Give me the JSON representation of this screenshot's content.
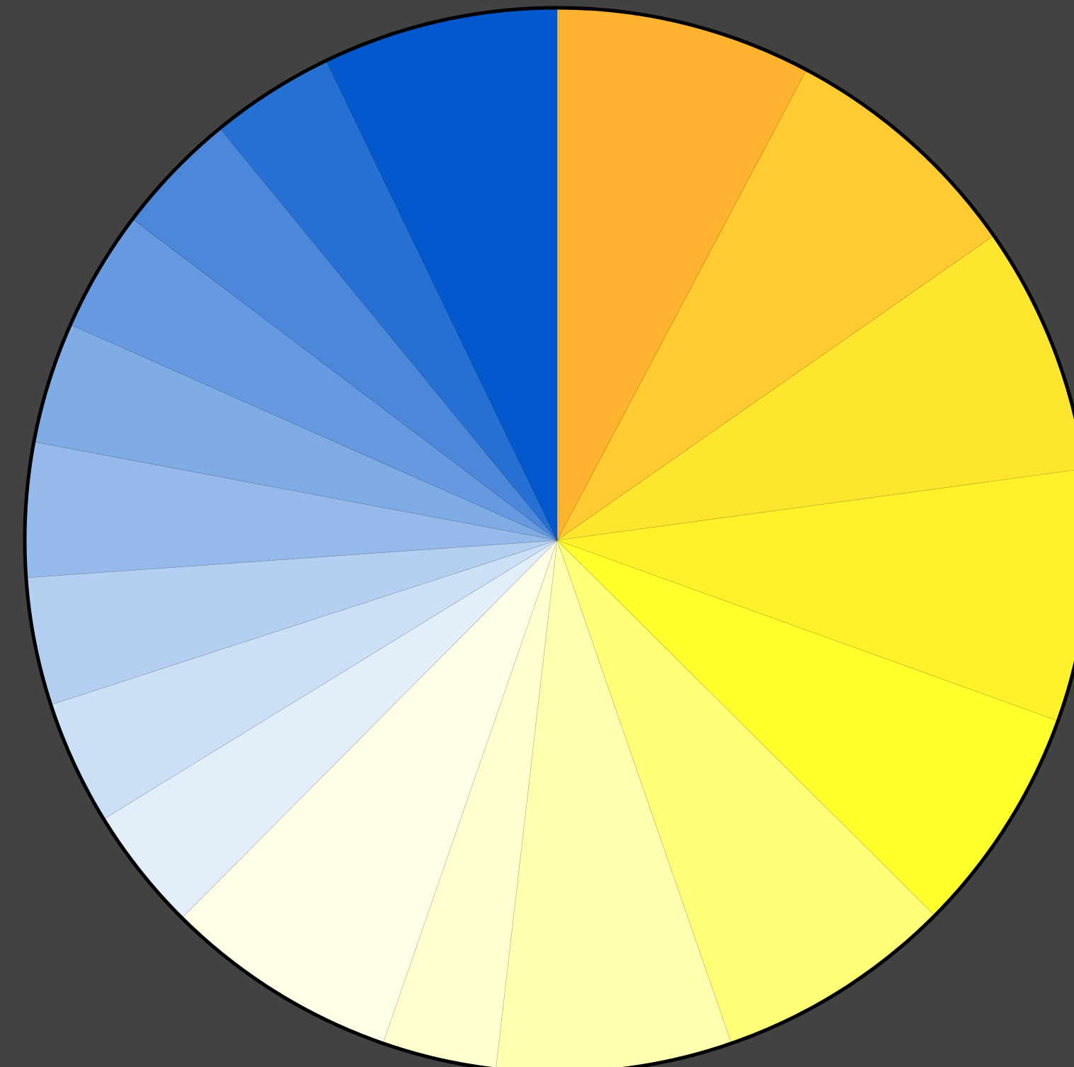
{
  "background_color": "#424242",
  "outline_color": "#000000",
  "chart_data": {
    "type": "pie",
    "start": "12 o'clock",
    "direction": "clockwise",
    "legend": "none",
    "labels": "none",
    "slices": [
      {
        "value": 7.6,
        "color": "#FFB32E"
      },
      {
        "value": 7.4,
        "color": "#FFCB30"
      },
      {
        "value": 7.4,
        "color": "#FFE62E"
      },
      {
        "value": 7.5,
        "color": "#FFF22B"
      },
      {
        "value": 6.8,
        "color": "#FFFF2C"
      },
      {
        "value": 7.1,
        "color": "#FFFF78"
      },
      {
        "value": 7.0,
        "color": "#FFFFB0"
      },
      {
        "value": 3.4,
        "color": "#FFFFD0"
      },
      {
        "value": 7.0,
        "color": "#FFFFE8"
      },
      {
        "value": 3.7,
        "color": "#E2EEFA"
      },
      {
        "value": 3.7,
        "color": "#CBDFF6"
      },
      {
        "value": 3.8,
        "color": "#B4CFF1"
      },
      {
        "value": 4.0,
        "color": "#95B9EB"
      },
      {
        "value": 3.6,
        "color": "#80ACE6"
      },
      {
        "value": 3.6,
        "color": "#6699DF"
      },
      {
        "value": 3.7,
        "color": "#4C87DA"
      },
      {
        "value": 3.7,
        "color": "#2670D4"
      },
      {
        "value": 7.0,
        "color": "#0258CC"
      }
    ]
  }
}
